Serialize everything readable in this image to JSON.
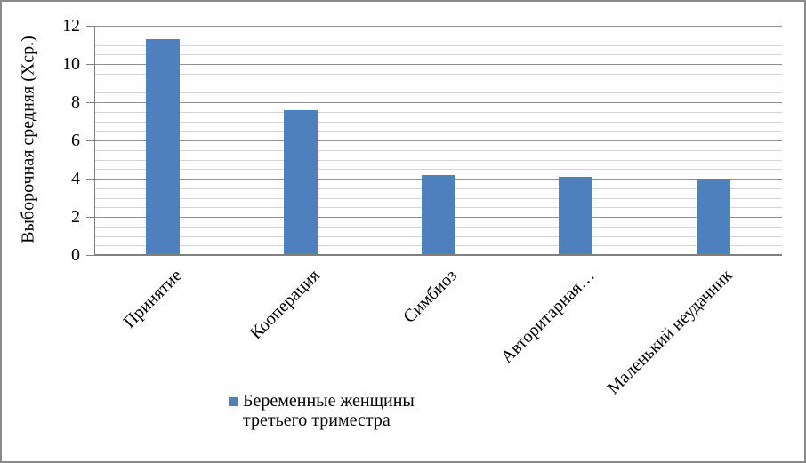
{
  "chart_data": {
    "type": "bar",
    "categories": [
      "Принятие",
      "Кооперация",
      "Симбиоз",
      "Авторитарная…",
      "Маленький неудачник"
    ],
    "series": [
      {
        "name": "Беременные женщины третьего триместра",
        "values": [
          11.3,
          7.6,
          4.2,
          4.1,
          4.0
        ]
      }
    ],
    "ylabel": "Выборочная средняя (Хср.)",
    "ylim": [
      0,
      12
    ],
    "y_tick_labels": [
      "0",
      "2",
      "4",
      "6",
      "8",
      "10",
      "12"
    ],
    "y_major_unit": 2,
    "y_minor_unit": 0.5,
    "grid": "horizontal major+minor",
    "legend_position": "bottom-center",
    "colors": {
      "bar": "#4d80bc",
      "major_gridline": "#8f8f8f",
      "minor_gridline": "#d4d4d4",
      "axis_line": "#7f7f7f",
      "border": "#8a8a8a",
      "text": "#000000"
    }
  },
  "legend": {
    "items": [
      {
        "label": "Беременные женщины третьего триместра",
        "swatch_color": "#4d80bc"
      }
    ]
  }
}
